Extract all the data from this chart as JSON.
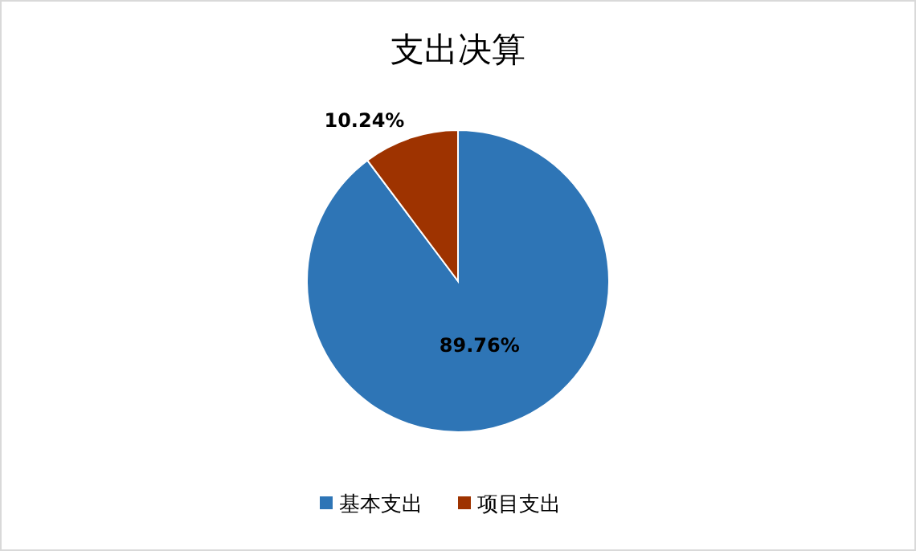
{
  "chart_data": {
    "type": "pie",
    "title": "支出决算",
    "categories": [
      "基本支出",
      "项目支出"
    ],
    "values": [
      89.76,
      10.24
    ],
    "colors": [
      "#2e75b6",
      "#9e3300"
    ],
    "value_labels": [
      "89.76%",
      "10.24%"
    ],
    "legend": "bottom"
  }
}
